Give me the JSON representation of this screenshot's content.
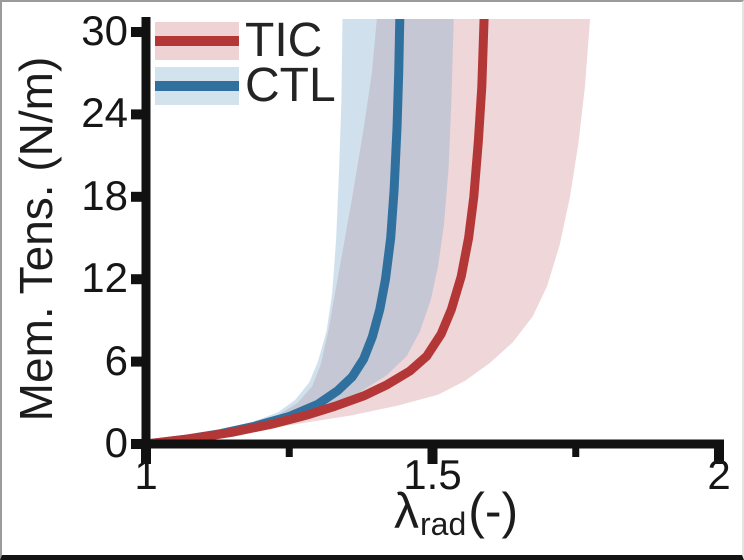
{
  "figure": {
    "ylabel": "Mem. Tens. (N/m)",
    "xlabel_symbol": "λ",
    "xlabel_subscript": "rad",
    "xlabel_units": "(-)"
  },
  "legend": [
    {
      "label": "TIC",
      "line_color": "#b43737",
      "band_color": "#eed2d4"
    },
    {
      "label": "CTL",
      "line_color": "#30709f",
      "band_color": "#d3e3ee"
    }
  ],
  "chart_data": {
    "type": "line",
    "title": "",
    "xlabel": "λ_rad (-)",
    "ylabel": "Mem. Tens. (N/m)",
    "xlim": [
      1,
      2
    ],
    "ylim": [
      0,
      30
    ],
    "grid": false,
    "legend_position": "upper left",
    "x_ticks": [
      {
        "v": 1,
        "label": "1"
      },
      {
        "v": 1.5,
        "label": "1.5"
      },
      {
        "v": 2,
        "label": "2"
      }
    ],
    "x_minor_ticks": [
      1.25,
      1.75
    ],
    "y_ticks": [
      {
        "v": 0,
        "label": "0"
      },
      {
        "v": 6,
        "label": "6"
      },
      {
        "v": 12,
        "label": "12"
      },
      {
        "v": 18,
        "label": "18"
      },
      {
        "v": 24,
        "label": "24"
      },
      {
        "v": 30,
        "label": "30"
      }
    ],
    "series": [
      {
        "name": "TIC",
        "color": "#b43737",
        "band_fill": "rgba(210,140,146,0.36)",
        "mean": [
          [
            1,
            0
          ],
          [
            1.08,
            0.4
          ],
          [
            1.15,
            0.85
          ],
          [
            1.22,
            1.45
          ],
          [
            1.28,
            2.1
          ],
          [
            1.33,
            2.75
          ],
          [
            1.38,
            3.5
          ],
          [
            1.42,
            4.3
          ],
          [
            1.46,
            5.3
          ],
          [
            1.49,
            6.4
          ],
          [
            1.515,
            8.0
          ],
          [
            1.533,
            9.8
          ],
          [
            1.55,
            12.2
          ],
          [
            1.563,
            15
          ],
          [
            1.572,
            18
          ],
          [
            1.58,
            22
          ],
          [
            1.586,
            26
          ],
          [
            1.59,
            31
          ]
        ],
        "band_lower": [
          [
            1,
            0
          ],
          [
            1.06,
            0.35
          ],
          [
            1.12,
            0.8
          ],
          [
            1.18,
            1.4
          ],
          [
            1.23,
            2.1
          ],
          [
            1.265,
            3.0
          ],
          [
            1.29,
            4.2
          ],
          [
            1.305,
            5.8
          ],
          [
            1.318,
            8.2
          ],
          [
            1.33,
            11
          ],
          [
            1.345,
            14.5
          ],
          [
            1.36,
            18
          ],
          [
            1.38,
            23
          ],
          [
            1.394,
            27
          ],
          [
            1.403,
            31
          ]
        ],
        "band_upper": [
          [
            1,
            0
          ],
          [
            1.09,
            0.4
          ],
          [
            1.18,
            0.9
          ],
          [
            1.27,
            1.5
          ],
          [
            1.36,
            2.1
          ],
          [
            1.44,
            2.8
          ],
          [
            1.51,
            3.6
          ],
          [
            1.557,
            4.6
          ],
          [
            1.6,
            5.9
          ],
          [
            1.64,
            7.4
          ],
          [
            1.675,
            9.3
          ],
          [
            1.7,
            11.5
          ],
          [
            1.722,
            14.5
          ],
          [
            1.74,
            18
          ],
          [
            1.755,
            22
          ],
          [
            1.766,
            26
          ],
          [
            1.775,
            31
          ]
        ]
      },
      {
        "name": "CTL",
        "color": "#30709f",
        "band_fill": "rgba(125,173,205,0.36)",
        "mean": [
          [
            1,
            0
          ],
          [
            1.07,
            0.35
          ],
          [
            1.13,
            0.75
          ],
          [
            1.19,
            1.3
          ],
          [
            1.25,
            2.0
          ],
          [
            1.3,
            2.9
          ],
          [
            1.335,
            3.9
          ],
          [
            1.36,
            4.9
          ],
          [
            1.38,
            6.2
          ],
          [
            1.395,
            7.8
          ],
          [
            1.408,
            9.8
          ],
          [
            1.418,
            12
          ],
          [
            1.427,
            15
          ],
          [
            1.433,
            18.5
          ],
          [
            1.438,
            23
          ],
          [
            1.441,
            27
          ],
          [
            1.443,
            31
          ]
        ],
        "band_lower": [
          [
            1,
            0
          ],
          [
            1.06,
            0.4
          ],
          [
            1.12,
            0.9
          ],
          [
            1.18,
            1.5
          ],
          [
            1.23,
            2.3
          ],
          [
            1.26,
            3.2
          ],
          [
            1.285,
            4.5
          ],
          [
            1.3,
            6.0
          ],
          [
            1.315,
            8.2
          ],
          [
            1.325,
            11
          ],
          [
            1.332,
            15
          ],
          [
            1.337,
            20
          ],
          [
            1.341,
            25
          ],
          [
            1.343,
            31
          ]
        ],
        "band_upper": [
          [
            1,
            0
          ],
          [
            1.08,
            0.45
          ],
          [
            1.16,
            1.0
          ],
          [
            1.24,
            1.7
          ],
          [
            1.31,
            2.6
          ],
          [
            1.37,
            3.7
          ],
          [
            1.42,
            5.0
          ],
          [
            1.455,
            6.4
          ],
          [
            1.478,
            8.2
          ],
          [
            1.497,
            10.5
          ],
          [
            1.51,
            13
          ],
          [
            1.52,
            16
          ],
          [
            1.528,
            20
          ],
          [
            1.533,
            25
          ],
          [
            1.537,
            31
          ]
        ]
      }
    ]
  }
}
